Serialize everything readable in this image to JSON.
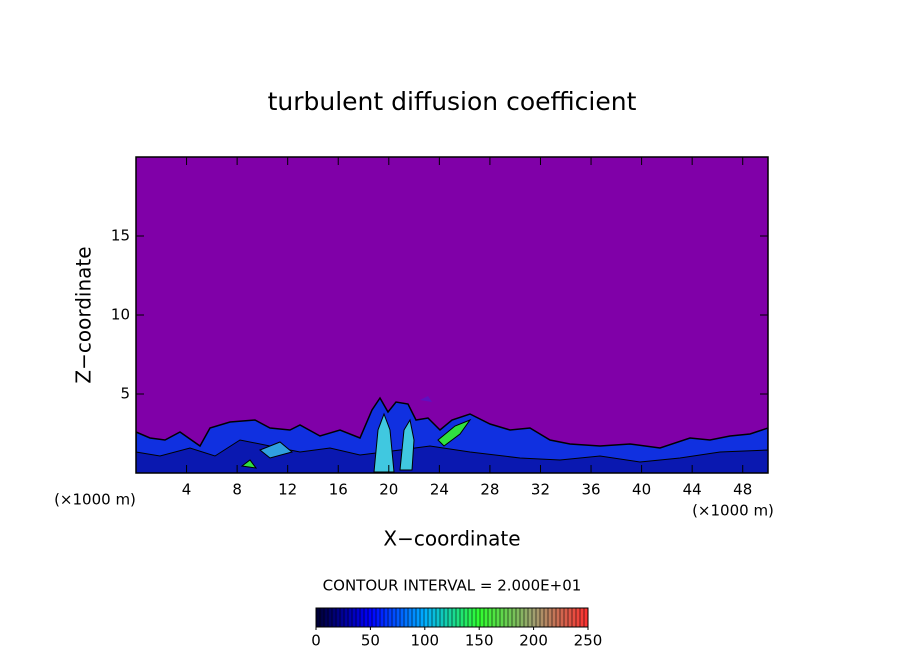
{
  "chart_data": {
    "type": "contour",
    "title": "turbulent diffusion coefficient",
    "x_label": "X−coordinate",
    "y_label": "Z−coordinate",
    "x_unit_label": "(×1000 m)",
    "y_unit_label": "(×1000 m)",
    "xlim": [
      0,
      50
    ],
    "xticks": [
      4,
      8,
      12,
      16,
      20,
      24,
      28,
      32,
      36,
      40,
      44,
      48
    ],
    "ylim": [
      0,
      20
    ],
    "yticks": [
      5,
      10,
      15
    ],
    "contour_interval_label": "CONTOUR INTERVAL = 2.000E+01",
    "clim": [
      0,
      250
    ],
    "cticks": [
      0,
      50,
      100,
      150,
      200,
      250
    ],
    "colormap": [
      "#000030",
      "#0000ff",
      "#00b0ff",
      "#30ff30",
      "#a0a070",
      "#ff3030"
    ]
  }
}
